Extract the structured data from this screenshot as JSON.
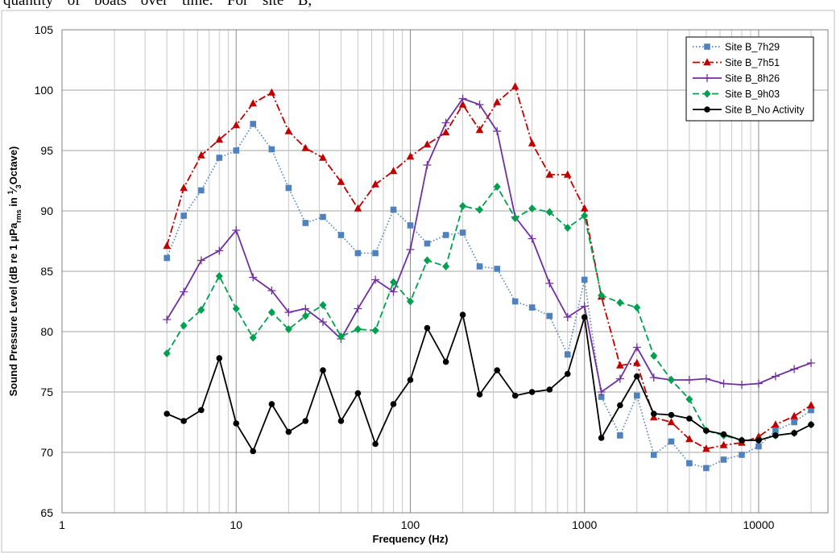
{
  "header_text": "quantity  of  boats  over  time.  For  site  B,",
  "chart_data": {
    "type": "line",
    "x_scale": "log",
    "xlim": [
      1,
      25000
    ],
    "ylim": [
      65,
      105
    ],
    "xlabel": "Frequency (Hz)",
    "ylabel_parts": [
      "Sound Pressure Level (dB re 1 µPa",
      "rms",
      " in ",
      "1",
      "⁄",
      "3",
      "Octave)"
    ],
    "x_ticks": [
      1,
      10,
      100,
      1000,
      10000
    ],
    "x_tick_labels": [
      "1",
      "10",
      "100",
      "1000",
      "10000"
    ],
    "y_ticks": [
      65,
      70,
      75,
      80,
      85,
      90,
      95,
      100,
      105
    ],
    "y_tick_labels": [
      "65",
      "70",
      "75",
      "80",
      "85",
      "90",
      "95",
      "100",
      "105"
    ],
    "grid": "on",
    "legend_position": "top-right",
    "x": [
      4,
      5,
      6.3,
      8,
      10,
      12.5,
      16,
      20,
      25,
      31.5,
      40,
      50,
      63,
      80,
      100,
      125,
      160,
      200,
      250,
      315,
      400,
      500,
      630,
      800,
      1000,
      1250,
      1600,
      2000,
      2500,
      3150,
      4000,
      5000,
      6300,
      8000,
      10000,
      12500,
      16000,
      20000
    ],
    "series": [
      {
        "name": "Site B_7h29",
        "color": "#4f81bd",
        "line": "dotted",
        "marker": "square",
        "values": [
          86.1,
          89.6,
          91.7,
          94.4,
          95.0,
          97.2,
          95.1,
          91.9,
          89.0,
          89.5,
          88.0,
          86.5,
          86.5,
          90.1,
          88.8,
          87.3,
          88.0,
          88.2,
          85.4,
          85.2,
          82.5,
          82.0,
          81.3,
          78.1,
          84.3,
          74.6,
          71.4,
          74.7,
          69.8,
          70.9,
          69.1,
          68.7,
          69.4,
          69.8,
          70.5,
          71.8,
          72.5,
          73.5
        ]
      },
      {
        "name": "Site B_7h51",
        "color": "#c00000",
        "line": "dashdot",
        "marker": "triangle",
        "values": [
          87.1,
          91.9,
          94.6,
          95.9,
          97.1,
          98.9,
          99.8,
          96.6,
          95.2,
          94.4,
          92.4,
          90.2,
          92.2,
          93.3,
          94.5,
          95.5,
          96.5,
          98.8,
          96.7,
          99.0,
          100.3,
          95.6,
          93.0,
          93.0,
          90.2,
          82.9,
          77.2,
          77.4,
          72.9,
          72.5,
          71.1,
          70.3,
          70.6,
          70.8,
          71.3,
          72.3,
          73.0,
          73.9
        ]
      },
      {
        "name": "Site B_8h26",
        "color": "#7030a0",
        "line": "solid",
        "marker": "plus",
        "values": [
          81.0,
          83.3,
          85.9,
          86.7,
          88.4,
          84.5,
          83.4,
          81.6,
          81.9,
          80.8,
          79.4,
          81.9,
          84.3,
          83.3,
          86.8,
          93.8,
          97.3,
          99.3,
          98.8,
          96.6,
          89.5,
          87.7,
          84.0,
          81.2,
          82.1,
          75.0,
          76.1,
          78.7,
          76.2,
          76.0,
          76.0,
          76.1,
          75.7,
          75.6,
          75.7,
          76.3,
          76.9,
          77.4
        ]
      },
      {
        "name": "Site B_9h03",
        "color": "#00a050",
        "line": "dashed",
        "marker": "diamond",
        "values": [
          78.2,
          80.5,
          81.8,
          84.6,
          81.9,
          79.5,
          81.6,
          80.2,
          81.3,
          82.2,
          79.6,
          80.2,
          80.1,
          84.1,
          82.5,
          85.9,
          85.4,
          90.4,
          90.1,
          92.0,
          89.4,
          90.2,
          89.9,
          88.6,
          89.6,
          83.0,
          82.4,
          82.0,
          78.0,
          76.0,
          74.4,
          71.8,
          71.4,
          71.0,
          71.0,
          71.4,
          71.6,
          72.3
        ]
      },
      {
        "name": "Site B_No Activity",
        "color": "#000000",
        "line": "solid",
        "marker": "circle",
        "values": [
          73.2,
          72.6,
          73.5,
          77.8,
          72.4,
          70.1,
          74.0,
          71.7,
          72.6,
          76.8,
          72.6,
          74.9,
          70.7,
          74.0,
          76.0,
          80.3,
          77.5,
          81.4,
          74.8,
          76.8,
          74.7,
          75.0,
          75.2,
          76.5,
          81.2,
          71.2,
          73.9,
          76.3,
          73.2,
          73.1,
          72.8,
          71.8,
          71.5,
          71.0,
          71.0,
          71.4,
          71.6,
          72.3
        ]
      }
    ]
  }
}
